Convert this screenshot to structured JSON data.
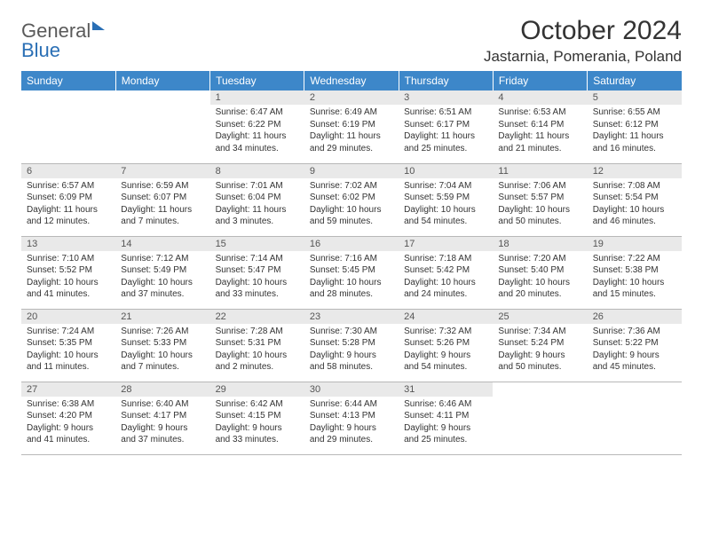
{
  "brand": {
    "part1": "General",
    "part2": "Blue"
  },
  "title": "October 2024",
  "location": "Jastarnia, Pomerania, Poland",
  "colors": {
    "header_bg": "#3d87c9",
    "header_text": "#ffffff",
    "daynum_bg": "#e9e9e9",
    "row_border": "#b8b8b8",
    "text": "#333333",
    "logo_gray": "#5a5a5a",
    "logo_blue": "#2a6fb5"
  },
  "weekdays": [
    "Sunday",
    "Monday",
    "Tuesday",
    "Wednesday",
    "Thursday",
    "Friday",
    "Saturday"
  ],
  "weeks": [
    [
      {
        "empty": true
      },
      {
        "empty": true
      },
      {
        "num": "1",
        "sunrise": "Sunrise: 6:47 AM",
        "sunset": "Sunset: 6:22 PM",
        "daylight": "Daylight: 11 hours and 34 minutes."
      },
      {
        "num": "2",
        "sunrise": "Sunrise: 6:49 AM",
        "sunset": "Sunset: 6:19 PM",
        "daylight": "Daylight: 11 hours and 29 minutes."
      },
      {
        "num": "3",
        "sunrise": "Sunrise: 6:51 AM",
        "sunset": "Sunset: 6:17 PM",
        "daylight": "Daylight: 11 hours and 25 minutes."
      },
      {
        "num": "4",
        "sunrise": "Sunrise: 6:53 AM",
        "sunset": "Sunset: 6:14 PM",
        "daylight": "Daylight: 11 hours and 21 minutes."
      },
      {
        "num": "5",
        "sunrise": "Sunrise: 6:55 AM",
        "sunset": "Sunset: 6:12 PM",
        "daylight": "Daylight: 11 hours and 16 minutes."
      }
    ],
    [
      {
        "num": "6",
        "sunrise": "Sunrise: 6:57 AM",
        "sunset": "Sunset: 6:09 PM",
        "daylight": "Daylight: 11 hours and 12 minutes."
      },
      {
        "num": "7",
        "sunrise": "Sunrise: 6:59 AM",
        "sunset": "Sunset: 6:07 PM",
        "daylight": "Daylight: 11 hours and 7 minutes."
      },
      {
        "num": "8",
        "sunrise": "Sunrise: 7:01 AM",
        "sunset": "Sunset: 6:04 PM",
        "daylight": "Daylight: 11 hours and 3 minutes."
      },
      {
        "num": "9",
        "sunrise": "Sunrise: 7:02 AM",
        "sunset": "Sunset: 6:02 PM",
        "daylight": "Daylight: 10 hours and 59 minutes."
      },
      {
        "num": "10",
        "sunrise": "Sunrise: 7:04 AM",
        "sunset": "Sunset: 5:59 PM",
        "daylight": "Daylight: 10 hours and 54 minutes."
      },
      {
        "num": "11",
        "sunrise": "Sunrise: 7:06 AM",
        "sunset": "Sunset: 5:57 PM",
        "daylight": "Daylight: 10 hours and 50 minutes."
      },
      {
        "num": "12",
        "sunrise": "Sunrise: 7:08 AM",
        "sunset": "Sunset: 5:54 PM",
        "daylight": "Daylight: 10 hours and 46 minutes."
      }
    ],
    [
      {
        "num": "13",
        "sunrise": "Sunrise: 7:10 AM",
        "sunset": "Sunset: 5:52 PM",
        "daylight": "Daylight: 10 hours and 41 minutes."
      },
      {
        "num": "14",
        "sunrise": "Sunrise: 7:12 AM",
        "sunset": "Sunset: 5:49 PM",
        "daylight": "Daylight: 10 hours and 37 minutes."
      },
      {
        "num": "15",
        "sunrise": "Sunrise: 7:14 AM",
        "sunset": "Sunset: 5:47 PM",
        "daylight": "Daylight: 10 hours and 33 minutes."
      },
      {
        "num": "16",
        "sunrise": "Sunrise: 7:16 AM",
        "sunset": "Sunset: 5:45 PM",
        "daylight": "Daylight: 10 hours and 28 minutes."
      },
      {
        "num": "17",
        "sunrise": "Sunrise: 7:18 AM",
        "sunset": "Sunset: 5:42 PM",
        "daylight": "Daylight: 10 hours and 24 minutes."
      },
      {
        "num": "18",
        "sunrise": "Sunrise: 7:20 AM",
        "sunset": "Sunset: 5:40 PM",
        "daylight": "Daylight: 10 hours and 20 minutes."
      },
      {
        "num": "19",
        "sunrise": "Sunrise: 7:22 AM",
        "sunset": "Sunset: 5:38 PM",
        "daylight": "Daylight: 10 hours and 15 minutes."
      }
    ],
    [
      {
        "num": "20",
        "sunrise": "Sunrise: 7:24 AM",
        "sunset": "Sunset: 5:35 PM",
        "daylight": "Daylight: 10 hours and 11 minutes."
      },
      {
        "num": "21",
        "sunrise": "Sunrise: 7:26 AM",
        "sunset": "Sunset: 5:33 PM",
        "daylight": "Daylight: 10 hours and 7 minutes."
      },
      {
        "num": "22",
        "sunrise": "Sunrise: 7:28 AM",
        "sunset": "Sunset: 5:31 PM",
        "daylight": "Daylight: 10 hours and 2 minutes."
      },
      {
        "num": "23",
        "sunrise": "Sunrise: 7:30 AM",
        "sunset": "Sunset: 5:28 PM",
        "daylight": "Daylight: 9 hours and 58 minutes."
      },
      {
        "num": "24",
        "sunrise": "Sunrise: 7:32 AM",
        "sunset": "Sunset: 5:26 PM",
        "daylight": "Daylight: 9 hours and 54 minutes."
      },
      {
        "num": "25",
        "sunrise": "Sunrise: 7:34 AM",
        "sunset": "Sunset: 5:24 PM",
        "daylight": "Daylight: 9 hours and 50 minutes."
      },
      {
        "num": "26",
        "sunrise": "Sunrise: 7:36 AM",
        "sunset": "Sunset: 5:22 PM",
        "daylight": "Daylight: 9 hours and 45 minutes."
      }
    ],
    [
      {
        "num": "27",
        "sunrise": "Sunrise: 6:38 AM",
        "sunset": "Sunset: 4:20 PM",
        "daylight": "Daylight: 9 hours and 41 minutes."
      },
      {
        "num": "28",
        "sunrise": "Sunrise: 6:40 AM",
        "sunset": "Sunset: 4:17 PM",
        "daylight": "Daylight: 9 hours and 37 minutes."
      },
      {
        "num": "29",
        "sunrise": "Sunrise: 6:42 AM",
        "sunset": "Sunset: 4:15 PM",
        "daylight": "Daylight: 9 hours and 33 minutes."
      },
      {
        "num": "30",
        "sunrise": "Sunrise: 6:44 AM",
        "sunset": "Sunset: 4:13 PM",
        "daylight": "Daylight: 9 hours and 29 minutes."
      },
      {
        "num": "31",
        "sunrise": "Sunrise: 6:46 AM",
        "sunset": "Sunset: 4:11 PM",
        "daylight": "Daylight: 9 hours and 25 minutes."
      },
      {
        "empty": true
      },
      {
        "empty": true
      }
    ]
  ]
}
